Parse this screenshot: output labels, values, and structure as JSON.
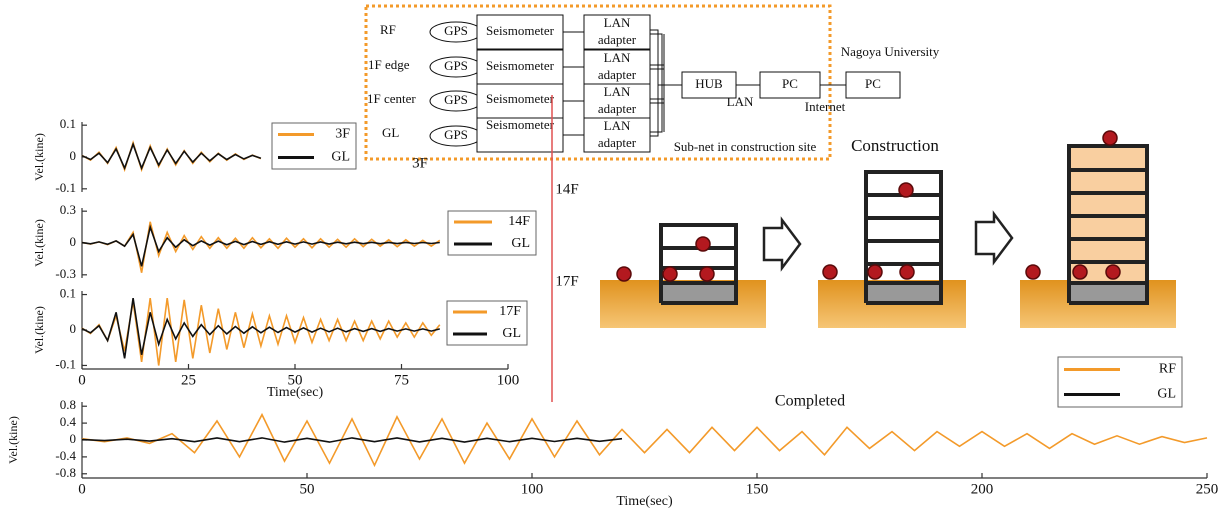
{
  "diagram": {
    "rows": [
      {
        "label": "RF",
        "gps": "GPS",
        "seismometer": "Seismometer",
        "adapter": [
          "LAN",
          "adapter"
        ]
      },
      {
        "label": "1F edge",
        "gps": "GPS",
        "seismometer": "Seismometer",
        "adapter": [
          "LAN",
          "adapter"
        ]
      },
      {
        "label": "1F center",
        "gps": "GPS",
        "seismometer": "Seismometer",
        "adapter": [
          "LAN",
          "adapter"
        ]
      },
      {
        "label": "GL",
        "gps": "GPS",
        "seismometer": "Seismometer",
        "adapter": [
          "LAN",
          "adapter"
        ]
      }
    ],
    "hub": "HUB",
    "pc_site": "PC",
    "pc_university": "PC",
    "lan": "LAN",
    "internet": "Internet",
    "university": "Nagoya University",
    "subnet": "Sub-net in construction site"
  },
  "labels": {
    "floor_3f": "3F",
    "floor_14f": "14F",
    "floor_17f": "17F",
    "construction": "Construction",
    "completed": "Completed"
  },
  "chart_data": [
    {
      "type": "line",
      "ylabel": "Vel.(kine)",
      "xlim": [
        0,
        100
      ],
      "ylim": [
        -0.11,
        0.11
      ],
      "yticks": [
        0.1,
        0,
        -0.1
      ],
      "x": [
        0,
        2,
        4,
        6,
        8,
        10,
        12,
        14,
        16,
        18,
        20,
        22,
        24,
        26,
        28,
        30,
        32,
        34,
        36,
        38,
        40,
        42
      ],
      "series": [
        {
          "name": "3F",
          "color": "#f39a2a",
          "values": [
            0.005,
            -0.01,
            0.015,
            -0.02,
            0.03,
            -0.04,
            0.045,
            -0.04,
            0.035,
            -0.03,
            0.025,
            -0.025,
            0.02,
            -0.02,
            0.015,
            -0.015,
            0.012,
            -0.01,
            0.01,
            -0.008,
            0.006,
            -0.005
          ]
        },
        {
          "name": "GL",
          "color": "#111111",
          "values": [
            0.004,
            -0.008,
            0.012,
            -0.018,
            0.025,
            -0.035,
            0.04,
            -0.035,
            0.03,
            -0.025,
            0.022,
            -0.02,
            0.018,
            -0.016,
            0.012,
            -0.012,
            0.01,
            -0.008,
            0.008,
            -0.006,
            0.005,
            -0.004
          ]
        }
      ]
    },
    {
      "type": "line",
      "ylabel": "Vel.(kine)",
      "xlim": [
        0,
        100
      ],
      "ylim": [
        -0.33,
        0.33
      ],
      "yticks": [
        0.3,
        0,
        -0.3
      ],
      "x": [
        0,
        2,
        4,
        6,
        8,
        10,
        12,
        14,
        16,
        18,
        20,
        22,
        24,
        26,
        28,
        30,
        32,
        34,
        36,
        38,
        40,
        42,
        44,
        46,
        48,
        50,
        52,
        54,
        56,
        58,
        60,
        62,
        64,
        66,
        68,
        70,
        72,
        74,
        76,
        78,
        80,
        82,
        84
      ],
      "series": [
        {
          "name": "14F",
          "color": "#f39a2a",
          "values": [
            0.005,
            -0.01,
            0.01,
            -0.015,
            0.02,
            -0.03,
            0.1,
            -0.28,
            0.2,
            -0.12,
            0.1,
            -0.08,
            0.07,
            -0.06,
            0.06,
            -0.05,
            0.05,
            -0.05,
            0.045,
            -0.05,
            0.05,
            -0.045,
            0.04,
            -0.05,
            0.045,
            -0.04,
            0.04,
            -0.045,
            0.04,
            -0.04,
            0.035,
            -0.04,
            0.04,
            -0.035,
            0.035,
            -0.03,
            0.03,
            -0.035,
            0.03,
            -0.03,
            0.025,
            -0.03,
            0.025
          ]
        },
        {
          "name": "GL",
          "color": "#111111",
          "values": [
            0.004,
            -0.008,
            0.01,
            -0.012,
            0.02,
            -0.03,
            0.08,
            -0.22,
            0.15,
            -0.08,
            0.05,
            -0.04,
            0.03,
            -0.025,
            0.02,
            -0.02,
            0.018,
            -0.016,
            0.015,
            -0.015,
            0.014,
            -0.013,
            0.012,
            -0.012,
            0.011,
            -0.01,
            0.01,
            -0.01,
            0.009,
            -0.009,
            0.008,
            -0.008,
            0.008,
            -0.007,
            0.007,
            -0.007,
            0.006,
            -0.006,
            0.006,
            -0.005,
            0.005,
            -0.005,
            0.005
          ]
        }
      ]
    },
    {
      "type": "line",
      "ylabel": "Vel.(kine)",
      "xlabel": "Time(sec)",
      "xlim": [
        0,
        100
      ],
      "xticks": [
        0,
        25,
        50,
        75,
        100
      ],
      "ylim": [
        -0.11,
        0.11
      ],
      "yticks": [
        0.1,
        0,
        -0.1
      ],
      "x": [
        0,
        2,
        4,
        6,
        8,
        10,
        12,
        14,
        16,
        18,
        20,
        22,
        24,
        26,
        28,
        30,
        32,
        34,
        36,
        38,
        40,
        42,
        44,
        46,
        48,
        50,
        52,
        54,
        56,
        58,
        60,
        62,
        64,
        66,
        68,
        70,
        72,
        74,
        76,
        78,
        80,
        82,
        84
      ],
      "series": [
        {
          "name": "17F",
          "color": "#f39a2a",
          "values": [
            0.005,
            -0.01,
            0.015,
            -0.03,
            0.04,
            -0.06,
            0.08,
            -0.09,
            0.09,
            -0.1,
            0.09,
            -0.09,
            0.085,
            -0.08,
            0.07,
            -0.065,
            0.06,
            -0.055,
            0.05,
            -0.05,
            0.045,
            -0.045,
            0.04,
            -0.04,
            0.04,
            -0.035,
            0.035,
            -0.035,
            0.03,
            -0.03,
            0.03,
            -0.03,
            0.025,
            -0.03,
            0.025,
            -0.025,
            0.025,
            -0.02,
            0.02,
            -0.02,
            0.02,
            -0.015,
            0.015
          ]
        },
        {
          "name": "GL",
          "color": "#111111",
          "values": [
            0.004,
            -0.008,
            0.012,
            -0.03,
            0.05,
            -0.08,
            0.09,
            -0.07,
            0.05,
            -0.04,
            0.03,
            -0.025,
            0.02,
            -0.018,
            0.015,
            -0.013,
            0.012,
            -0.011,
            0.01,
            -0.009,
            0.009,
            -0.008,
            0.008,
            -0.007,
            0.007,
            -0.006,
            0.006,
            -0.006,
            0.005,
            -0.005,
            0.005,
            -0.005,
            0.004,
            -0.004,
            0.004,
            -0.004,
            0.004,
            -0.003,
            0.003,
            -0.003,
            0.003,
            -0.003,
            0.003
          ]
        }
      ]
    },
    {
      "type": "line",
      "ylabel": "Vel.(kine)",
      "xlabel": "Time(sec)",
      "xlim": [
        0,
        250
      ],
      "xticks": [
        0,
        50,
        100,
        150,
        200,
        250
      ],
      "ylim": [
        -0.9,
        0.9
      ],
      "yticks": [
        0.8,
        0.4,
        0,
        -0.4,
        -0.8
      ],
      "x": [
        0,
        5,
        10,
        15,
        20,
        25,
        30,
        35,
        40,
        45,
        50,
        55,
        60,
        65,
        70,
        75,
        80,
        85,
        90,
        95,
        100,
        105,
        110,
        115,
        120,
        125,
        130,
        135,
        140,
        145,
        150,
        155,
        160,
        165,
        170,
        175,
        180,
        185,
        190,
        195,
        200,
        205,
        210,
        215,
        220,
        225,
        230,
        235,
        240,
        245,
        250
      ],
      "series": [
        {
          "name": "RF",
          "color": "#f39a2a",
          "values": [
            0.03,
            -0.04,
            0.05,
            -0.08,
            0.15,
            -0.3,
            0.45,
            -0.4,
            0.6,
            -0.5,
            0.45,
            -0.55,
            0.5,
            -0.6,
            0.55,
            -0.45,
            0.5,
            -0.55,
            0.4,
            -0.45,
            0.5,
            -0.4,
            0.45,
            -0.35,
            0.25,
            -0.3,
            0.25,
            -0.3,
            0.3,
            -0.25,
            0.3,
            -0.25,
            0.2,
            -0.35,
            0.3,
            -0.2,
            0.2,
            -0.25,
            0.2,
            -0.15,
            0.2,
            -0.15,
            0.15,
            -0.2,
            0.15,
            -0.1,
            0.1,
            -0.1,
            0.08,
            -0.06,
            0.05
          ]
        },
        {
          "name": "GL",
          "color": "#111111",
          "values": [
            0.01,
            -0.015,
            0.02,
            -0.025,
            0.03,
            -0.04,
            0.05,
            -0.04,
            0.05,
            -0.05,
            0.04,
            -0.05,
            0.05,
            -0.04,
            0.05,
            -0.045,
            0.04,
            -0.05,
            0.04,
            -0.04,
            0.04,
            -0.035,
            0.04,
            -0.03,
            0.03,
            null,
            null,
            null,
            null,
            null,
            null,
            null,
            null,
            null,
            null,
            null,
            null,
            null,
            null,
            null,
            null,
            null,
            null,
            null,
            null,
            null,
            null,
            null,
            null,
            null,
            null
          ]
        }
      ]
    }
  ]
}
